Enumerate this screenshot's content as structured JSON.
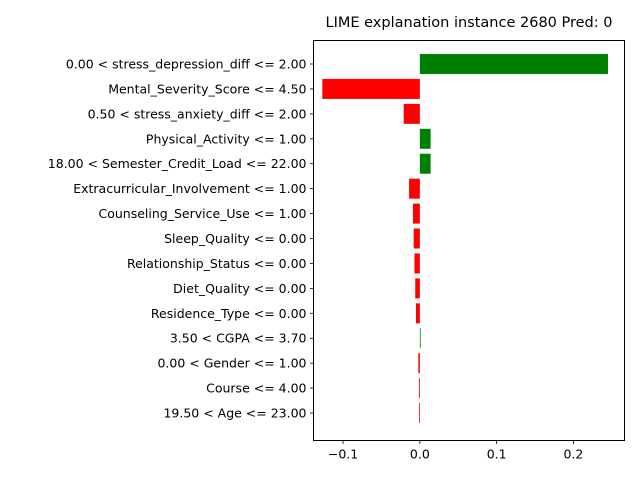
{
  "chart_data": {
    "type": "bar",
    "orientation": "horizontal",
    "title": "LIME explanation instance 2680 Pred: 0",
    "xlabel": "",
    "ylabel": "",
    "xlim": [
      -0.1385,
      0.2665
    ],
    "xticks": [
      -0.1,
      0.0,
      0.1,
      0.2
    ],
    "xtick_labels": [
      "−0.1",
      "0.0",
      "0.1",
      "0.2"
    ],
    "grid": false,
    "legend": "none",
    "positive_color": "#008000",
    "negative_color": "#ff0000",
    "categories": [
      "0.00 < stress_depression_diff <= 2.00",
      "Mental_Severity_Score <= 4.50",
      "0.50 < stress_anxiety_diff <= 2.00",
      "Physical_Activity <= 1.00",
      "18.00 < Semester_Credit_Load <= 22.00",
      "Extracurricular_Involvement <= 1.00",
      "Counseling_Service_Use <= 1.00",
      "Sleep_Quality <= 0.00",
      "Relationship_Status <= 0.00",
      "Diet_Quality <= 0.00",
      "Residence_Type <= 0.00",
      "3.50 < CGPA <= 3.70",
      "0.00 < Gender <= 1.00",
      "Course <= 4.00",
      "19.50 < Age <= 23.00"
    ],
    "values": [
      0.245,
      -0.127,
      -0.021,
      0.014,
      0.014,
      -0.014,
      -0.009,
      -0.008,
      -0.007,
      -0.006,
      -0.005,
      0.001,
      -0.002,
      -0.001,
      -0.001
    ]
  }
}
